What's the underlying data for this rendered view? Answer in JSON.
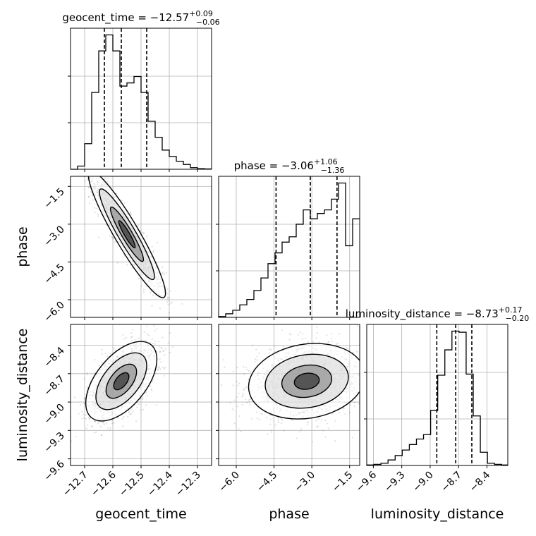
{
  "chart_data": {
    "type": "corner",
    "parameters": [
      "geocent_time",
      "phase",
      "luminosity_distance"
    ],
    "axis_labels": {
      "geocent_time": "geocent_time",
      "phase": "phase",
      "luminosity_distance": "luminosity_distance"
    },
    "ranges": {
      "geocent_time": [
        -12.75,
        -12.25
      ],
      "phase": [
        -6.7,
        -1.1
      ],
      "luminosity_distance": [
        -9.67,
        -8.18
      ]
    },
    "ticks": {
      "geocent_time": {
        "values": [
          -12.7,
          -12.6,
          -12.5,
          -12.4,
          -12.3
        ],
        "labels": [
          "−12.7",
          "−12.6",
          "−12.5",
          "−12.4",
          "−12.3"
        ]
      },
      "phase": {
        "values": [
          -6.0,
          -4.5,
          -3.0,
          -1.5
        ],
        "labels": [
          "−6.0",
          "−4.5",
          "−3.0",
          "−1.5"
        ]
      },
      "luminosity_distance": {
        "values": [
          -9.6,
          -9.3,
          -9.0,
          -8.7,
          -8.4
        ],
        "labels": [
          "−9.6",
          "−9.3",
          "−9.0",
          "−8.7",
          "−8.4"
        ]
      }
    },
    "titles": {
      "geocent_time": {
        "prefix": "geocent_time = −12.57",
        "sup": "+0.09",
        "sub": "−0.06"
      },
      "phase": {
        "prefix": "phase = −3.06",
        "sup": "+1.06",
        "sub": "−1.36"
      },
      "luminosity_distance": {
        "prefix": "luminosity_distance = −8.73",
        "sup": "+0.17",
        "sub": "−0.20"
      }
    },
    "quantiles": {
      "geocent_time": [
        -12.63,
        -12.57,
        -12.48
      ],
      "phase": [
        -4.42,
        -3.06,
        -2.0
      ],
      "luminosity_distance": [
        -8.93,
        -8.73,
        -8.56
      ]
    },
    "histograms": {
      "geocent_time": {
        "edges": [
          -12.75,
          -12.725,
          -12.7,
          -12.675,
          -12.65,
          -12.625,
          -12.6,
          -12.575,
          -12.55,
          -12.525,
          -12.5,
          -12.475,
          -12.45,
          -12.425,
          -12.4,
          -12.375,
          -12.35,
          -12.325,
          -12.3,
          -12.275,
          -12.25
        ],
        "counts": [
          0,
          1,
          8,
          24,
          37,
          42,
          37,
          26,
          27,
          29,
          24,
          15,
          10,
          6,
          4,
          2.5,
          1.5,
          0.5,
          0.2,
          0.1
        ]
      },
      "phase": {
        "edges": [
          -6.7,
          -6.42,
          -6.14,
          -5.86,
          -5.58,
          -5.3,
          -5.02,
          -4.74,
          -4.46,
          -4.18,
          -3.9,
          -3.62,
          -3.34,
          -3.06,
          -2.78,
          -2.5,
          -2.22,
          -1.94,
          -1.66,
          -1.38,
          -1.1
        ],
        "counts": [
          0.5,
          2,
          4,
          7,
          10,
          15,
          22,
          30,
          36,
          42,
          45,
          52,
          60,
          55,
          58,
          60,
          66,
          75,
          40,
          55
        ]
      },
      "luminosity_distance": {
        "edges": [
          -9.67,
          -9.595,
          -9.52,
          -9.445,
          -9.37,
          -9.295,
          -9.22,
          -9.145,
          -9.07,
          -8.995,
          -8.92,
          -8.845,
          -8.77,
          -8.695,
          -8.62,
          -8.545,
          -8.47,
          -8.395,
          -8.32,
          -8.245,
          -8.18
        ],
        "counts": [
          0.5,
          1,
          2,
          5,
          9,
          14,
          19,
          24,
          28,
          50,
          82,
          105,
          122,
          121,
          83,
          45,
          12,
          2,
          1,
          0.5
        ]
      }
    },
    "grid": true,
    "legend": "none"
  }
}
